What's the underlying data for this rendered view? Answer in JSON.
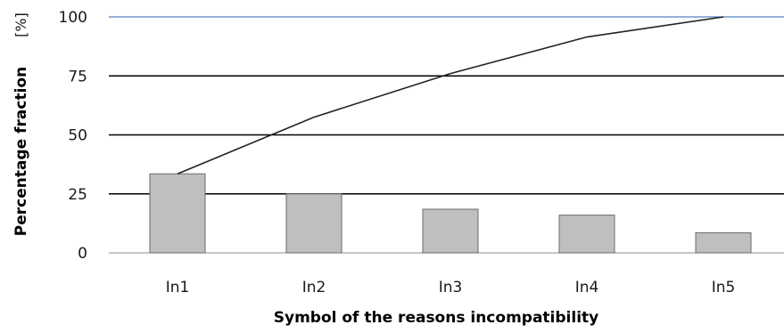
{
  "chart_data": {
    "type": "bar",
    "categories": [
      "In1",
      "In2",
      "In3",
      "In4",
      "In5"
    ],
    "series": [
      {
        "kind": "bar",
        "values": [
          33.5,
          25.0,
          18.5,
          16.0,
          8.5
        ]
      },
      {
        "kind": "line",
        "values": [
          33.5,
          57.5,
          76.0,
          91.5,
          100.0
        ]
      }
    ],
    "xlabel": "Symbol of the reasons incompatibility",
    "ylabel": "Percentage fraction",
    "yunit": "[%]",
    "ylim": [
      0,
      100
    ],
    "yticks": [
      "0",
      "25",
      "50",
      "75",
      "100"
    ],
    "grid": true,
    "colors": {
      "bar_fill": "#bfbfbf",
      "bar_stroke": "#6b6b6b",
      "line": "#222222",
      "grid": "#000000",
      "top_grid": "#4f81bd"
    }
  }
}
